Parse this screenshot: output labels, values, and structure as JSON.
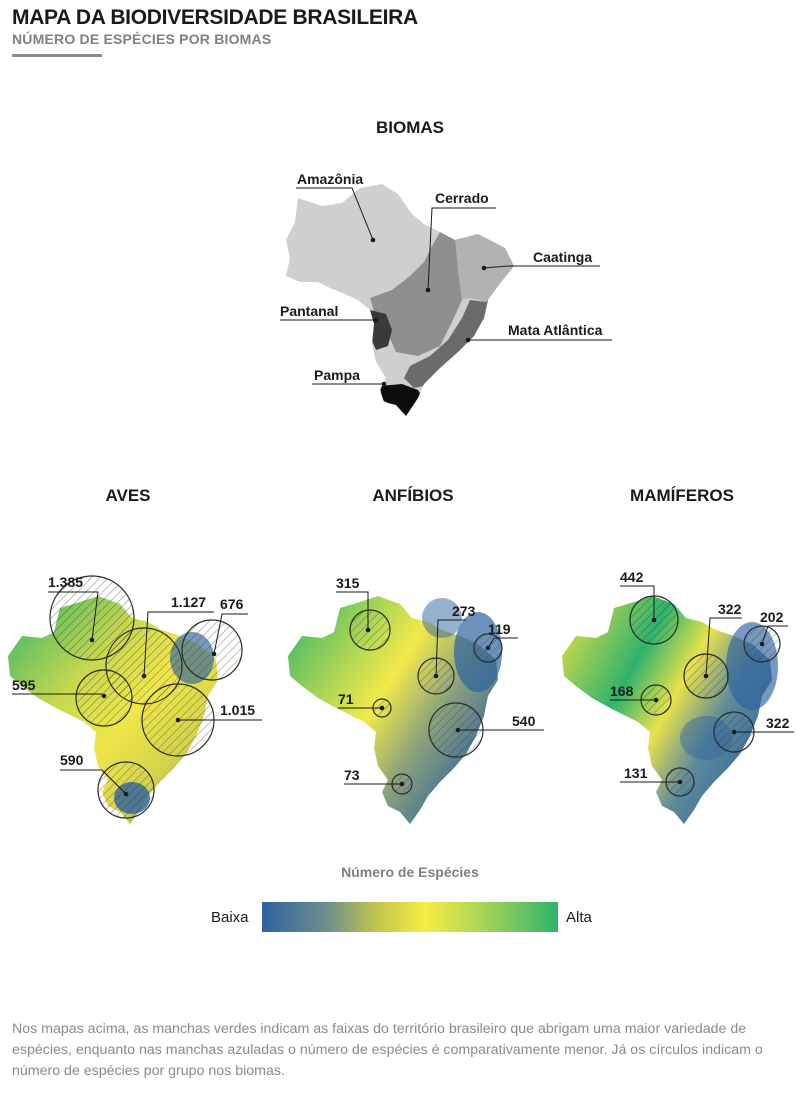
{
  "header": {
    "title": "MAPA DA BIODIVERSIDADE BRASILEIRA",
    "subtitle": "NÚMERO DE ESPÉCIES POR BIOMAS"
  },
  "biomes_map": {
    "title": "BIOMAS",
    "labels": [
      "Amazônia",
      "Cerrado",
      "Caatinga",
      "Pantanal",
      "Mata Atlântica",
      "Pampa"
    ],
    "colors": {
      "amazonia": "#cfcfcf",
      "cerrado": "#8f8f8f",
      "caatinga": "#b2b2b2",
      "pantanal": "#3a3a3a",
      "mata_atlantica": "#6b6b6b",
      "pampa": "#0c0c0c"
    }
  },
  "groups": [
    {
      "title": "AVES",
      "values": {
        "amazonia": "1.385",
        "cerrado": "1.127",
        "caatinga": "676",
        "pantanal": "595",
        "mata_atlantica": "1.015",
        "pampa": "590"
      }
    },
    {
      "title": "ANFÍBIOS",
      "values": {
        "amazonia": "315",
        "cerrado": "273",
        "caatinga": "119",
        "pantanal": "71",
        "mata_atlantica": "540",
        "pampa": "73"
      }
    },
    {
      "title": "MAMÍFEROS",
      "values": {
        "amazonia": "442",
        "cerrado": "322",
        "caatinga": "202",
        "pantanal": "168",
        "mata_atlantica": "322",
        "pampa": "131"
      }
    }
  ],
  "legend": {
    "title": "Número de Espécies",
    "low_label": "Baixa",
    "high_label": "Alta",
    "colors": {
      "low": "#2e62a0",
      "mid": "#f5ec45",
      "high": "#2eb36c"
    }
  },
  "footnote": "Nos mapas acima, as manchas verdes indicam as faixas do território brasileiro que abrigam uma maior variedade de espécies, enquanto nas manchas azuladas o número de espécies é comparativamente menor. Já os círculos indicam o número de espécies por grupo nos biomas."
}
